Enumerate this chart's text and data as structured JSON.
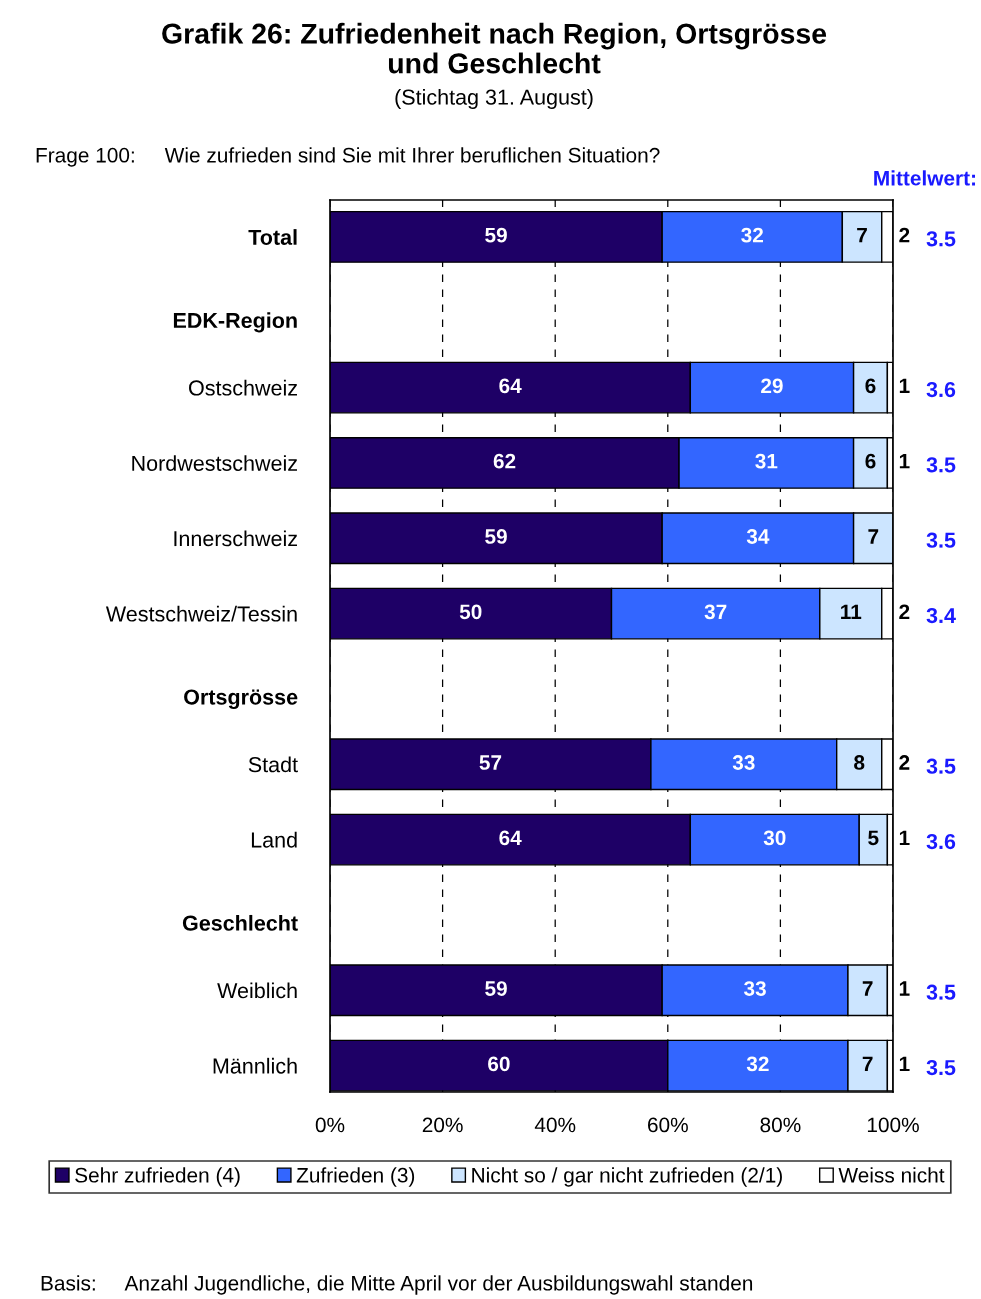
{
  "chart_data": {
    "type": "bar",
    "orientation": "horizontal",
    "stacked": true,
    "title": "Grafik 26: Zufriedenheit nach Region, Ortsgrösse\nund Geschlecht",
    "subtitle": "(Stichtag 31. August)",
    "categories": [
      "Total",
      "EDK-Region",
      "Ostschweiz",
      "Nordwestschweiz",
      "Innerschweiz",
      "Westschweiz/Tessin",
      "Ortsgrösse",
      "Stadt",
      "Land",
      "Geschlecht",
      "Weiblich",
      "Männlich"
    ],
    "series": [
      {
        "name": "Sehr zufrieden (4)",
        "color": "#1e0066",
        "values": [
          59,
          null,
          64,
          62,
          59,
          50,
          null,
          57,
          64,
          null,
          59,
          60
        ]
      },
      {
        "name": "Zufrieden (3)",
        "color": "#3366ff",
        "values": [
          32,
          null,
          29,
          31,
          34,
          37,
          null,
          33,
          30,
          null,
          33,
          32
        ]
      },
      {
        "name": "Nicht so / gar nicht zufrieden (2/1)",
        "color": "#cce5ff",
        "values": [
          7,
          null,
          6,
          6,
          7,
          11,
          null,
          8,
          5,
          null,
          7,
          7
        ]
      },
      {
        "name": "Weiss nicht",
        "color": "#ffffff",
        "values": [
          2,
          null,
          1,
          1,
          null,
          2,
          null,
          2,
          1,
          null,
          1,
          1
        ]
      }
    ],
    "xlim": [
      0,
      100
    ],
    "xticks": [
      {
        "value": 0,
        "label": "0%"
      },
      {
        "value": 20,
        "label": "20%"
      },
      {
        "value": 40,
        "label": "40%"
      },
      {
        "value": 60,
        "label": "60%"
      },
      {
        "value": 80,
        "label": "80%"
      },
      {
        "value": 100,
        "label": "100%"
      }
    ],
    "grid": "x",
    "legend": "bottom",
    "data_labels": true,
    "annotations": [
      "Frage 100:     Wie zufrieden sind Sie mit Ihrer beruflichen Situation?",
      "Mittelwert:",
      "3.5",
      "3.6",
      "3.5",
      "3.5",
      "3.4",
      "3.5",
      "3.6",
      "3.5",
      "3.5",
      "Basis:     Anzahl Jugendliche, die Mitte April vor der Ausbildungswahl standen"
    ]
  }
}
